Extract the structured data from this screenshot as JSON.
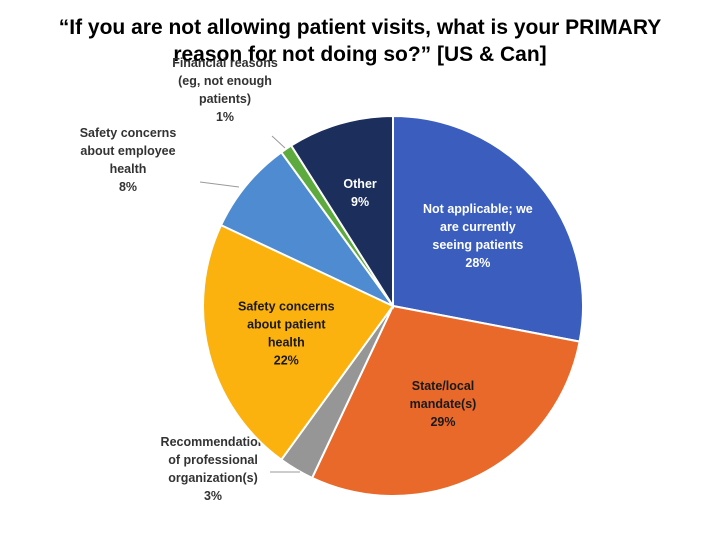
{
  "title": {
    "line1": "“If you are not allowing patient visits, what is your PRIMARY",
    "line2": "reason for not doing so?” [US & Can]"
  },
  "chart_data": {
    "type": "pie",
    "title": "“If you are not allowing patient visits, what is your PRIMARY reason for not doing so?” [US & Can]",
    "slices": [
      {
        "label_lines": [
          "Not applicable; we",
          "are currently",
          "seeing patients",
          "28%"
        ],
        "value": 28,
        "color": "#3A5DBE",
        "text_color": "#ffffff",
        "label_pos": "inside"
      },
      {
        "label_lines": [
          "State/local",
          "mandate(s)",
          "29%"
        ],
        "value": 29,
        "color": "#E8692A",
        "text_color": "#1a1a1a",
        "label_pos": "inside"
      },
      {
        "label_lines": [
          "Recommendation",
          "of professional",
          "organization(s)",
          "3%"
        ],
        "value": 3,
        "color": "#969696",
        "text_color": "#333333",
        "label_pos": "outside-bottom-left"
      },
      {
        "label_lines": [
          "Safety concerns",
          "about patient",
          "health",
          "22%"
        ],
        "value": 22,
        "color": "#FBB20E",
        "text_color": "#1a1a1a",
        "label_pos": "inside"
      },
      {
        "label_lines": [
          "Safety concerns",
          "about employee",
          "health",
          "8%"
        ],
        "value": 8,
        "color": "#4E8BD0",
        "text_color": "#333333",
        "label_pos": "outside-left"
      },
      {
        "label_lines": [
          "Financial reasons",
          "(eg, not enough",
          "patients)",
          "1%"
        ],
        "value": 1,
        "color": "#5DAA3E",
        "text_color": "#333333",
        "label_pos": "outside-top"
      },
      {
        "label_lines": [
          "Other",
          "9%"
        ],
        "value": 9,
        "color": "#1B2E5C",
        "text_color": "#ffffff",
        "label_pos": "inside"
      }
    ],
    "start_angle_deg": 0,
    "direction": "clockwise",
    "legend": "none"
  }
}
